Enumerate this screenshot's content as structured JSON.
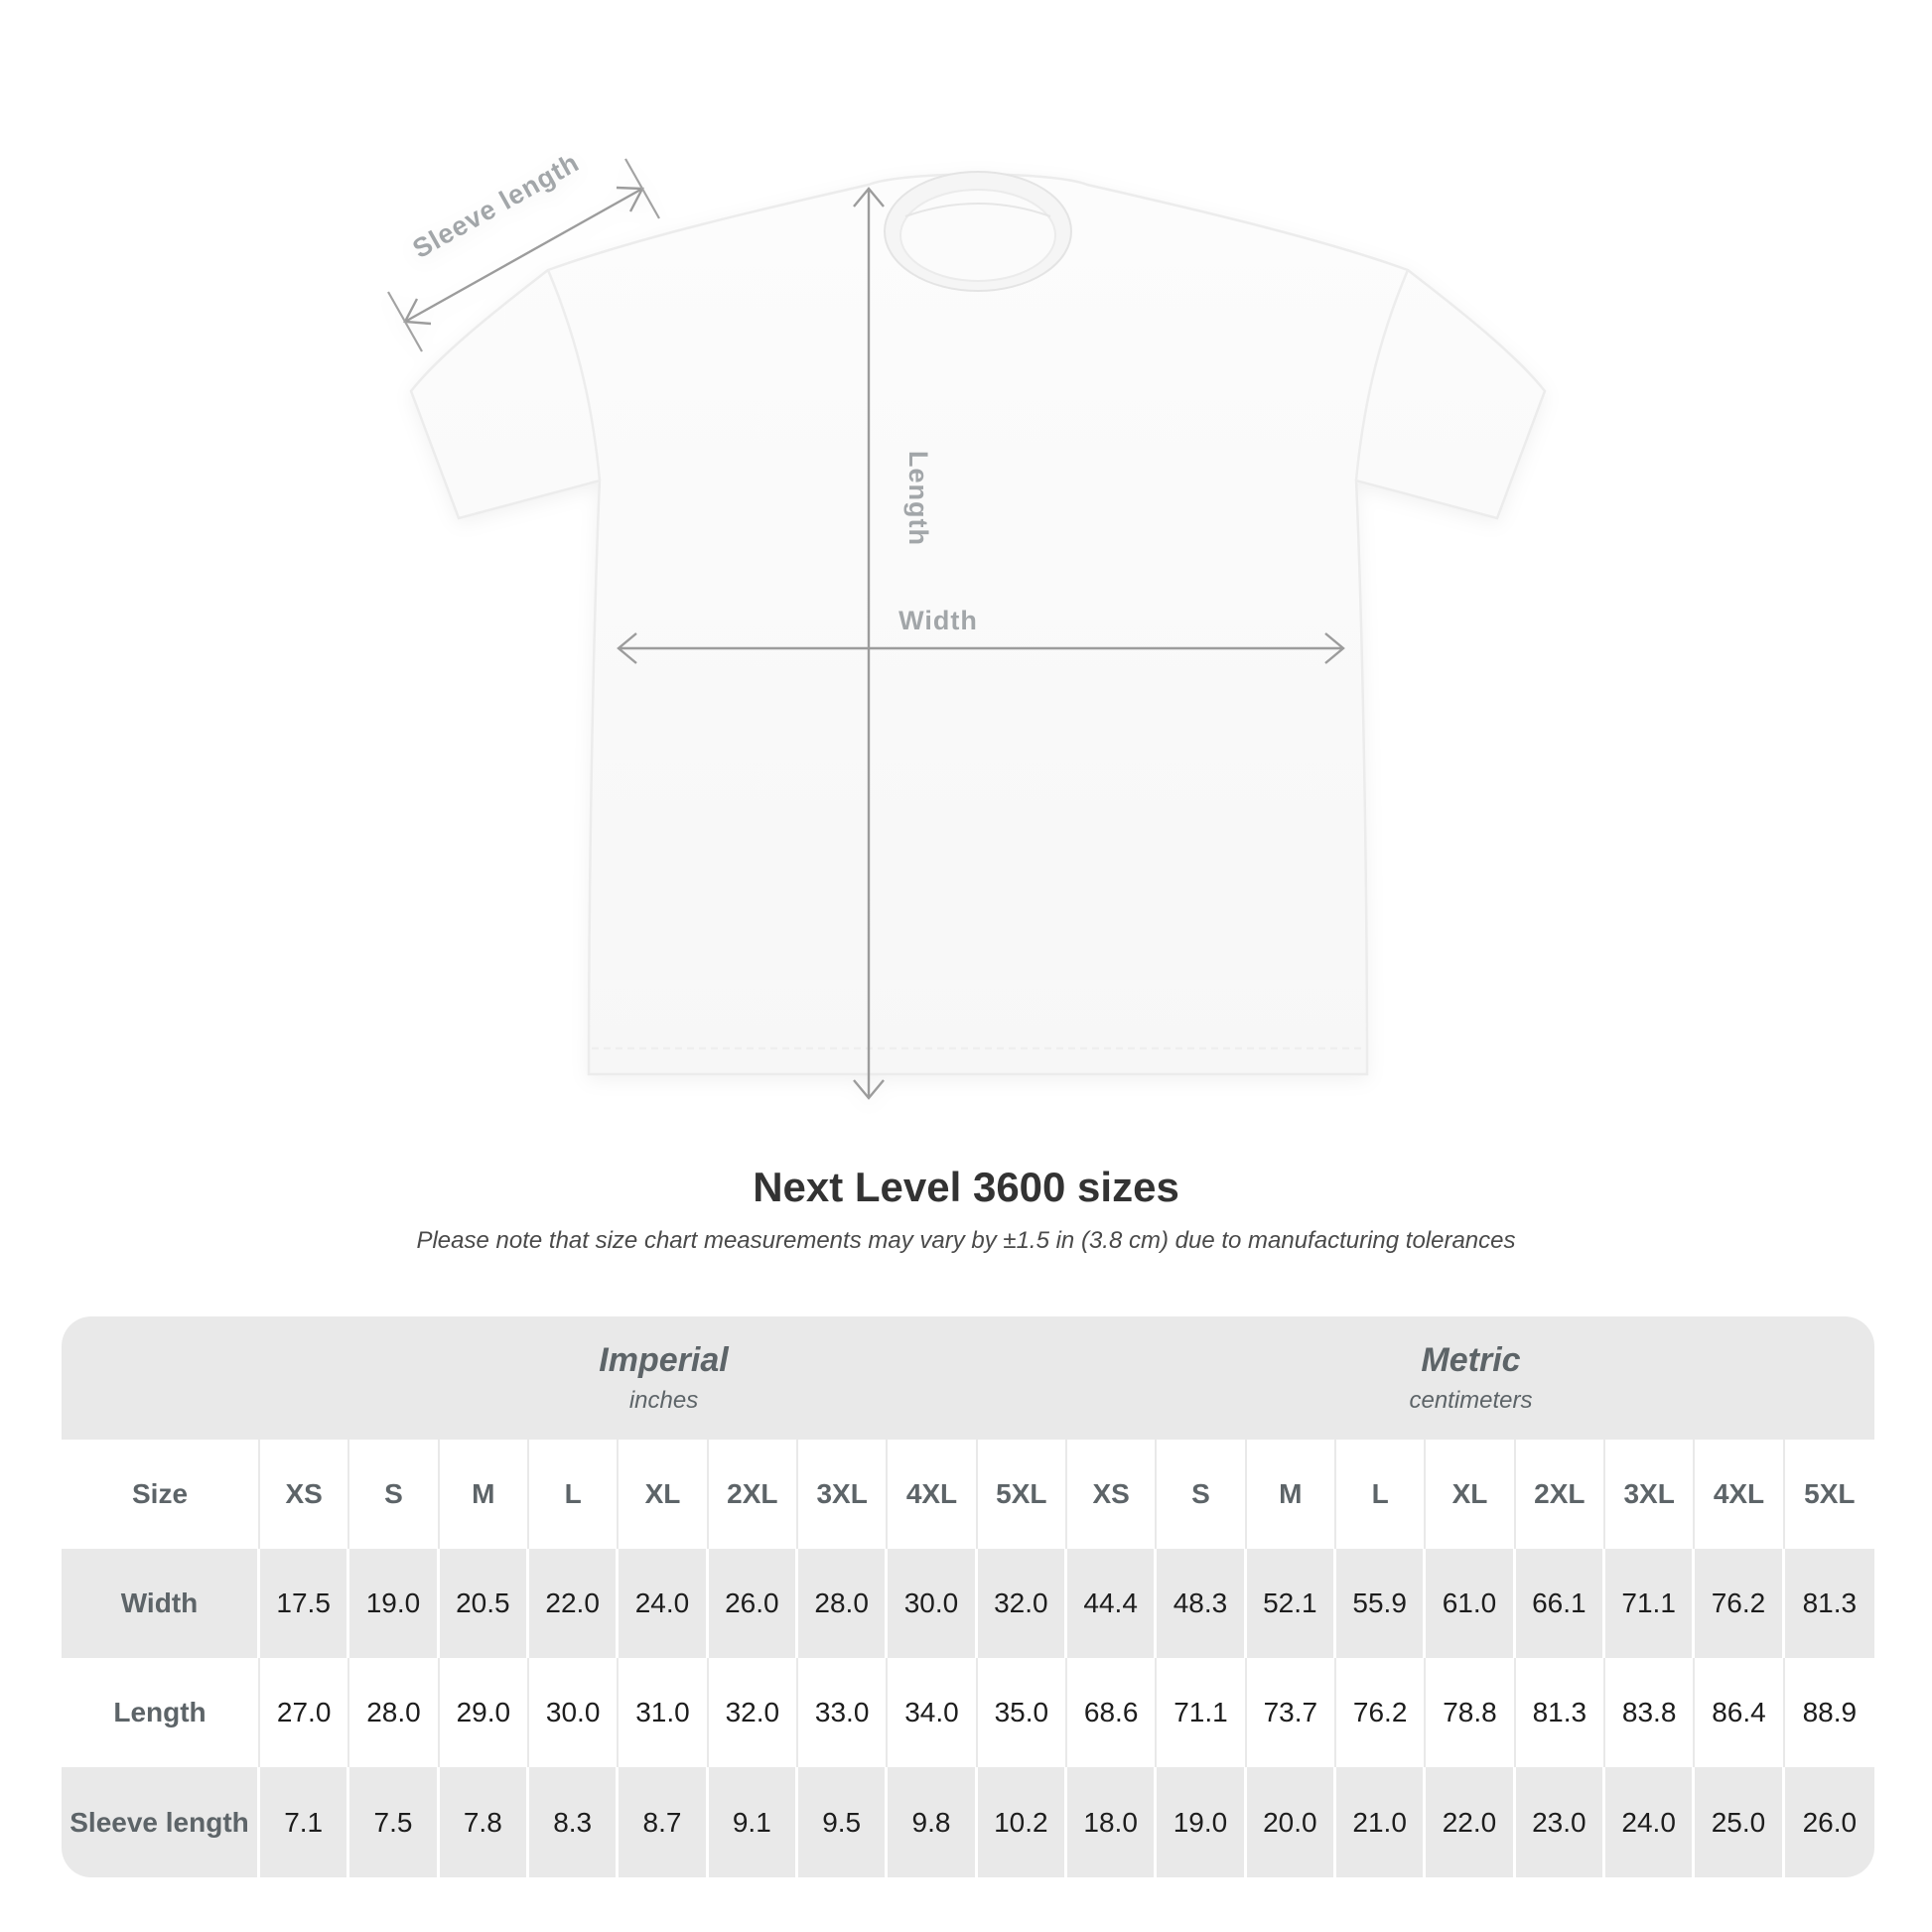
{
  "diagram": {
    "sleeve_length_label": "Sleeve length",
    "length_label": "Length",
    "width_label": "Width"
  },
  "title": "Next Level 3600 sizes",
  "subtitle": "Please note that size chart measurements may vary by ±1.5 in (3.8 cm) due to manufacturing tolerances",
  "colors": {
    "table_band": "#e9e9e9",
    "arrow_gray": "#9c9c9c",
    "title_text": "#333333"
  },
  "table": {
    "size_label": "Size",
    "unit_groups": [
      {
        "name": "Imperial",
        "unit": "inches"
      },
      {
        "name": "Metric",
        "unit": "centimeters"
      }
    ],
    "sizes": [
      "XS",
      "S",
      "M",
      "L",
      "XL",
      "2XL",
      "3XL",
      "4XL",
      "5XL"
    ],
    "rows": [
      {
        "label": "Width",
        "imperial": [
          "17.5",
          "19.0",
          "20.5",
          "22.0",
          "24.0",
          "26.0",
          "28.0",
          "30.0",
          "32.0"
        ],
        "metric": [
          "44.4",
          "48.3",
          "52.1",
          "55.9",
          "61.0",
          "66.1",
          "71.1",
          "76.2",
          "81.3"
        ]
      },
      {
        "label": "Length",
        "imperial": [
          "27.0",
          "28.0",
          "29.0",
          "30.0",
          "31.0",
          "32.0",
          "33.0",
          "34.0",
          "35.0"
        ],
        "metric": [
          "68.6",
          "71.1",
          "73.7",
          "76.2",
          "78.8",
          "81.3",
          "83.8",
          "86.4",
          "88.9"
        ]
      },
      {
        "label": "Sleeve length",
        "imperial": [
          "7.1",
          "7.5",
          "7.8",
          "8.3",
          "8.7",
          "9.1",
          "9.5",
          "9.8",
          "10.2"
        ],
        "metric": [
          "18.0",
          "19.0",
          "20.0",
          "21.0",
          "22.0",
          "23.0",
          "24.0",
          "25.0",
          "26.0"
        ]
      }
    ]
  }
}
